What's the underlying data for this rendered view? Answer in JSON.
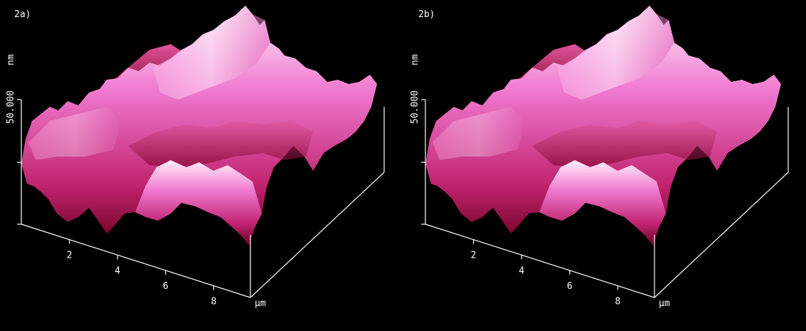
{
  "panels": [
    {
      "label": "2a)",
      "z_label": "50.000",
      "z_unit": "nm",
      "x_ticks": [
        "2",
        "4",
        "6",
        "8"
      ],
      "x_unit": "µm"
    },
    {
      "label": "2b)",
      "z_label": "50.000",
      "z_unit": "nm",
      "x_ticks": [
        "2",
        "4",
        "6",
        "8"
      ],
      "x_unit": "µm"
    }
  ]
}
